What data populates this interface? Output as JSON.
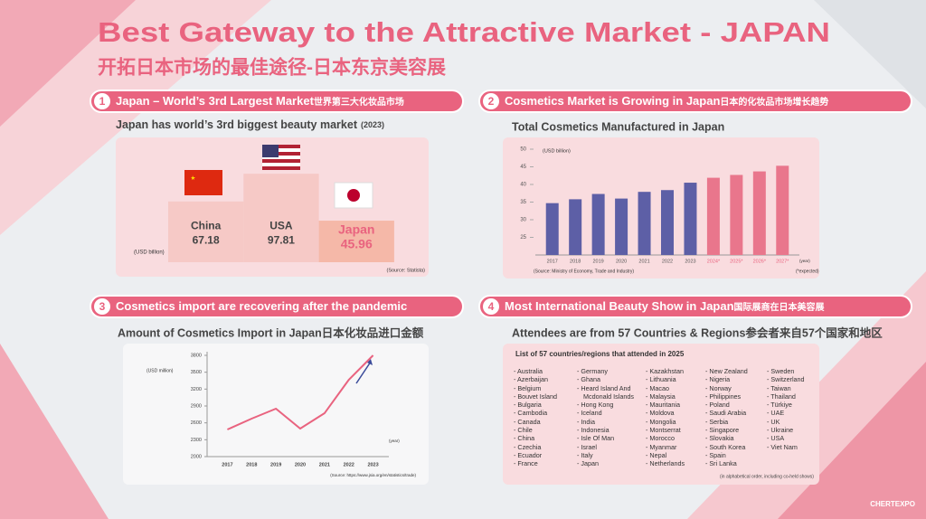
{
  "header": {
    "title": "Best Gateway to the Attractive Market - JAPAN",
    "subtitle": "开拓日本市场的最佳途径-日本东京美容展"
  },
  "sections": [
    {
      "number": "1",
      "title": "Japan – World’s 3rd Largest Market",
      "title_cn": "世界第三大化妆品市场"
    },
    {
      "number": "2",
      "title": "Cosmetics Market is Growing in Japan",
      "title_cn": "日本的化妆品市场增长趋势"
    },
    {
      "number": "3",
      "title": "Cosmetics import are recovering after the pandemic"
    },
    {
      "number": "4",
      "title": "Most International Beauty Show in Japan",
      "title_cn": "国际展商在日本美容展"
    }
  ],
  "chart_data": [
    {
      "type": "podium",
      "title": "Japan has world’s 3rd biggest beauty market",
      "subtitle": "(2023)",
      "categories": [
        "China",
        "USA",
        "Japan"
      ],
      "values": [
        67.18,
        97.81,
        45.96
      ],
      "colors": [
        "#f6c9c6",
        "#f6c9c6",
        "#f5b8a8"
      ],
      "unit_label": "(USD billion)",
      "source": "(Source: Statista)"
    },
    {
      "type": "bar",
      "title": "Total Cosmetics Manufactured in Japan",
      "categories": [
        "2017",
        "2018",
        "2019",
        "2020",
        "2021",
        "2022",
        "2023",
        "2024*",
        "2025*",
        "2026*",
        "2027*"
      ],
      "values": [
        34.7,
        35.8,
        37.3,
        36.0,
        37.9,
        38.4,
        40.5,
        41.9,
        42.7,
        43.7,
        45.3
      ],
      "colors": [
        "#5d5fa6",
        "#5d5fa6",
        "#5d5fa6",
        "#5d5fa6",
        "#5d5fa6",
        "#5d5fa6",
        "#5d5fa6",
        "#e9768c",
        "#e9768c",
        "#e9768c",
        "#e9768c"
      ],
      "ylim": [
        20,
        50
      ],
      "yticks": [
        25,
        30,
        35,
        40,
        45,
        50
      ],
      "y_label": "(USD billion)",
      "x_label": "(year)",
      "source": "(Source: Ministry of Economy, Trade and Industry)",
      "note": "(*expected)"
    },
    {
      "type": "line",
      "title": "Amount of Cosmetics Import in Japan日本化妆品进口金额",
      "categories": [
        "2017",
        "2018",
        "2019",
        "2020",
        "2021",
        "2022",
        "2023"
      ],
      "values": [
        2482,
        2675,
        2852,
        2498,
        2771,
        3366,
        3800
      ],
      "color": "#e9637f",
      "ylim": [
        2000,
        3800
      ],
      "yticks": [
        2000,
        2300,
        2600,
        2900,
        3200,
        3500,
        3800
      ],
      "y_label": "(USD million)",
      "x_label": "(year)",
      "source": "(Source: https://www.jsia.org/en/statistics/trade)"
    }
  ],
  "attendees": {
    "subtitle": "Attendees are from 57 Countries & Regions参会者来自57个国家和地区",
    "list_title": "List of 57 countries/regions that attended in 2025",
    "columns": [
      [
        "Australia",
        "Azerbaijan",
        "Belgium",
        "Bouvet Island",
        "Bulgaria",
        "Cambodia",
        "Canada",
        "Chile",
        "China",
        "Czechia",
        "Ecuador",
        "France"
      ],
      [
        "Germany",
        "Ghana",
        "Heard Island And Mcdonald Islands",
        "Hong Kong",
        "Iceland",
        "India",
        "Indonesia",
        "Isle Of Man",
        "Israel",
        "Italy",
        "Japan"
      ],
      [
        "Kazakhstan",
        "Lithuania",
        "Macao",
        "Malaysia",
        "Mauritania",
        "Moldova",
        "Mongolia",
        "Montserrat",
        "Morocco",
        "Myanmar",
        "Nepal",
        "Netherlands"
      ],
      [
        "New Zealand",
        "Nigeria",
        "Norway",
        "Philippines",
        "Poland",
        "Saudi Arabia",
        "Serbia",
        "Singapore",
        "Slovakia",
        "South Korea",
        "Spain",
        "Sri Lanka"
      ],
      [
        "Sweden",
        "Switzerland",
        "Taiwan",
        "Thailand",
        "Türkiye",
        "UAE",
        "UK",
        "Ukraine",
        "USA",
        "Viet Nam"
      ]
    ],
    "note": "(in alphabetical order, including co-held shows)"
  },
  "logo": "CHERTEXPO"
}
